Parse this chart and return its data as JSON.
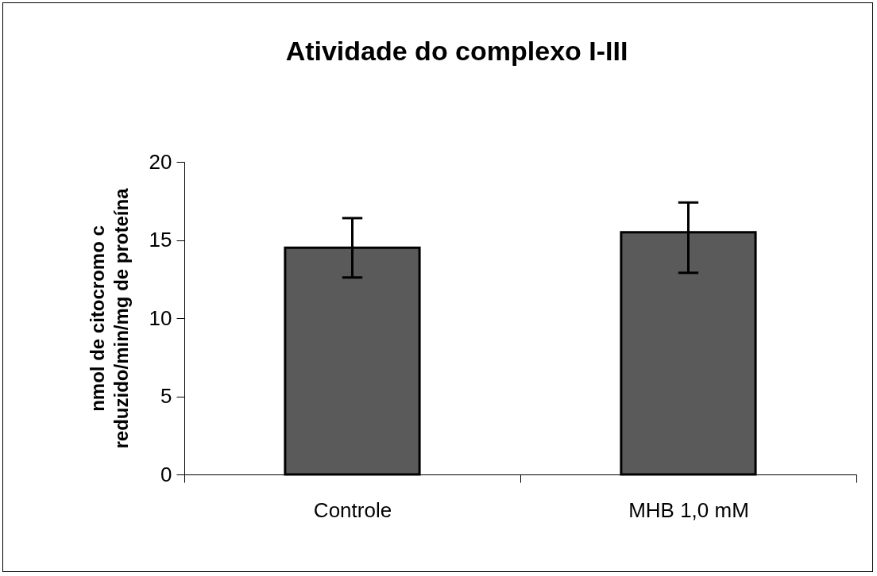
{
  "chart_data": {
    "type": "bar",
    "title": "Atividade do complexo I-III",
    "ylabel": "nmol de citocromo c reduzido/min/mg de proteína",
    "categories": [
      "Controle",
      "MHB 1,0 mM"
    ],
    "values": [
      14.5,
      15.5
    ],
    "errors": [
      [
        12.6,
        16.4
      ],
      [
        12.9,
        17.4
      ]
    ],
    "color": "#5a5a5a",
    "ylim": [
      0,
      20
    ],
    "yticks": [
      0,
      5,
      10,
      15,
      20
    ],
    "grid": false
  }
}
